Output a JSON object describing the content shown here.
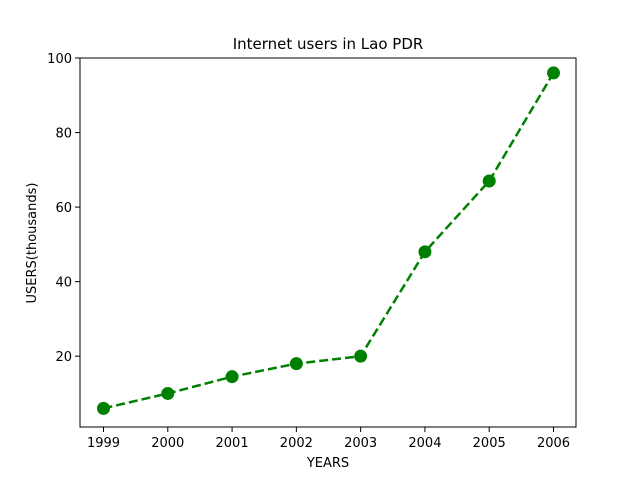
{
  "chart_data": {
    "type": "line",
    "title": "Internet users in Lao PDR",
    "xlabel": "YEARS",
    "ylabel": "USERS(thousands)",
    "x": [
      "1999",
      "2000",
      "2001",
      "2002",
      "2003",
      "2004",
      "2005",
      "2006"
    ],
    "series": [
      {
        "values": [
          6,
          10,
          14.5,
          18,
          20,
          48,
          67,
          96
        ],
        "color": "#008000",
        "linestyle": "dashed",
        "marker": "circle"
      }
    ],
    "ylim": [
      1,
      100
    ],
    "yticks": [
      20,
      40,
      60,
      80,
      100
    ],
    "grid": false
  }
}
